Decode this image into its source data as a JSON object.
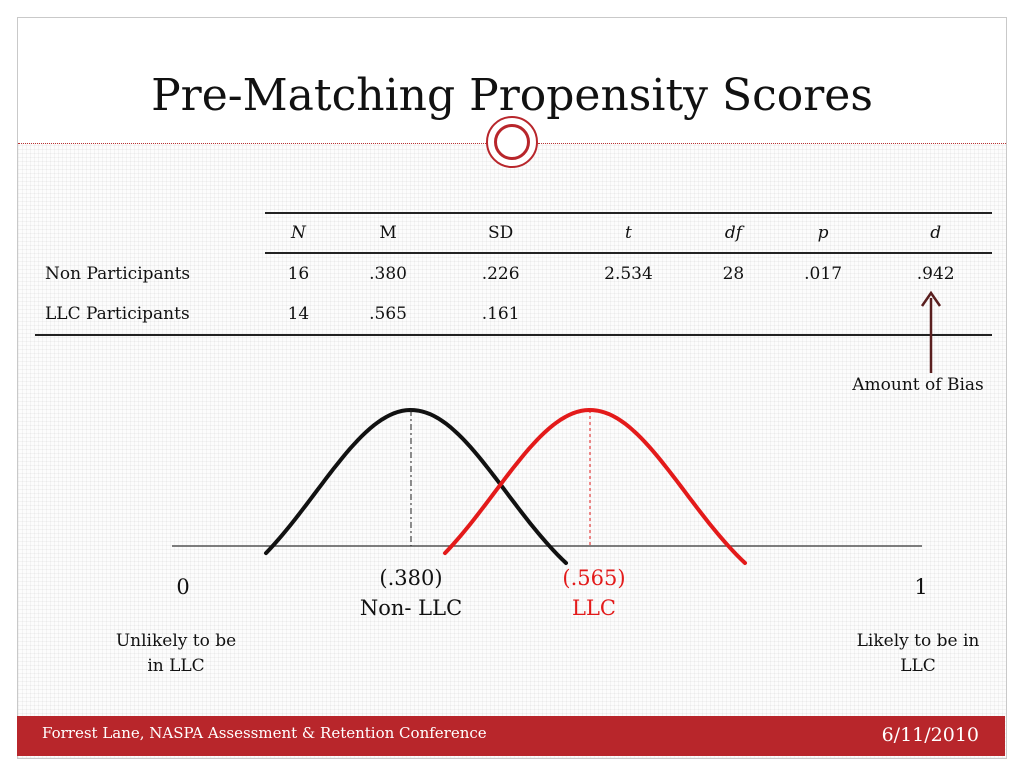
{
  "slide": {
    "title": "Pre-Matching Propensity Scores",
    "footer_left": "Forrest Lane, NASPA Assessment & Retention Conference",
    "footer_right": "6/11/2010"
  },
  "table": {
    "headers": [
      "N",
      "M",
      "SD",
      "t",
      "df",
      "p",
      "d"
    ],
    "rows": [
      {
        "label": "Non Participants",
        "cells": [
          "16",
          ".380",
          ".226",
          "2.534",
          "28",
          ".017",
          ".942"
        ]
      },
      {
        "label": "LLC Participants",
        "cells": [
          "14",
          ".565",
          ".161",
          "",
          "",
          "",
          ""
        ]
      }
    ]
  },
  "annotation": {
    "bias_label": "Amount of Bias"
  },
  "distribution": {
    "axis_min_label": "0",
    "axis_max_label": "1",
    "non_llc_value": "(.380)",
    "non_llc_label": "Non- LLC",
    "llc_value": "(.565)",
    "llc_label": "LLC",
    "left_caption_line1": "Unlikely to be",
    "left_caption_line2": "in LLC",
    "right_caption_line1": "Likely to be in",
    "right_caption_line2": "LLC",
    "non_llc_color": "#111111",
    "llc_color": "#e31a1a"
  },
  "colors": {
    "accent": "#b8262b"
  }
}
